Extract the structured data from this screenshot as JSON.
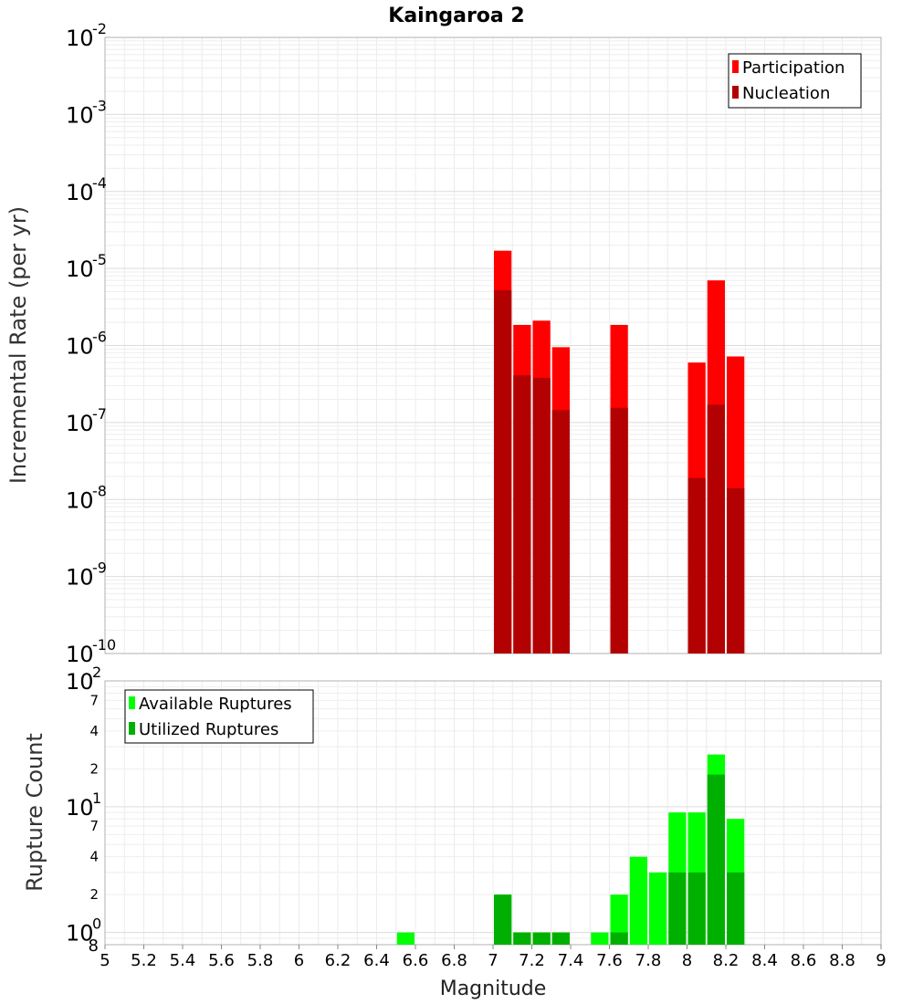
{
  "chart_data": [
    {
      "type": "bar",
      "title": "Kaingaroa 2",
      "ylabel": "Incremental Rate (per yr)",
      "yscale": "log",
      "ylim": [
        1e-10,
        0.01
      ],
      "xlim": [
        5,
        9
      ],
      "bin_width": 0.1,
      "legend": {
        "placement": "top-right",
        "items": [
          "Participation",
          "Nucleation"
        ]
      },
      "series": [
        {
          "name": "Participation",
          "color": "#ff0000",
          "points": [
            {
              "x": 7.05,
              "y": 1.7e-05
            },
            {
              "x": 7.15,
              "y": 1.85e-06
            },
            {
              "x": 7.25,
              "y": 2.1e-06
            },
            {
              "x": 7.35,
              "y": 9.5e-07
            },
            {
              "x": 7.65,
              "y": 1.85e-06
            },
            {
              "x": 8.05,
              "y": 6e-07
            },
            {
              "x": 8.15,
              "y": 7e-06
            },
            {
              "x": 8.25,
              "y": 7.2e-07
            }
          ]
        },
        {
          "name": "Nucleation",
          "color": "#b30000",
          "points": [
            {
              "x": 7.05,
              "y": 5.2e-06
            },
            {
              "x": 7.15,
              "y": 4.1e-07
            },
            {
              "x": 7.25,
              "y": 3.8e-07
            },
            {
              "x": 7.35,
              "y": 1.45e-07
            },
            {
              "x": 7.65,
              "y": 1.55e-07
            },
            {
              "x": 8.05,
              "y": 1.9e-08
            },
            {
              "x": 8.15,
              "y": 1.7e-07
            },
            {
              "x": 8.25,
              "y": 1.4e-08
            }
          ]
        }
      ],
      "grid": true
    },
    {
      "type": "bar",
      "xlabel": "Magnitude",
      "ylabel": "Rupture Count",
      "yscale": "log",
      "ylim": [
        0.8,
        100
      ],
      "xlim": [
        5,
        9
      ],
      "bin_width": 0.1,
      "legend": {
        "placement": "top-left",
        "items": [
          "Available Ruptures",
          "Utilized Ruptures"
        ]
      },
      "series": [
        {
          "name": "Available Ruptures",
          "color": "#00ff00",
          "points": [
            {
              "x": 6.55,
              "y": 1
            },
            {
              "x": 7.05,
              "y": 2
            },
            {
              "x": 7.15,
              "y": 1
            },
            {
              "x": 7.25,
              "y": 1
            },
            {
              "x": 7.35,
              "y": 1
            },
            {
              "x": 7.55,
              "y": 1
            },
            {
              "x": 7.65,
              "y": 2
            },
            {
              "x": 7.75,
              "y": 4
            },
            {
              "x": 7.85,
              "y": 3
            },
            {
              "x": 7.95,
              "y": 9
            },
            {
              "x": 8.05,
              "y": 9
            },
            {
              "x": 8.15,
              "y": 26
            },
            {
              "x": 8.25,
              "y": 8
            }
          ]
        },
        {
          "name": "Utilized Ruptures",
          "color": "#00b000",
          "points": [
            {
              "x": 7.05,
              "y": 2
            },
            {
              "x": 7.15,
              "y": 1
            },
            {
              "x": 7.25,
              "y": 1
            },
            {
              "x": 7.35,
              "y": 1
            },
            {
              "x": 7.65,
              "y": 1
            },
            {
              "x": 7.95,
              "y": 3
            },
            {
              "x": 8.05,
              "y": 3
            },
            {
              "x": 8.15,
              "y": 18
            },
            {
              "x": 8.25,
              "y": 3
            }
          ]
        }
      ],
      "x_ticks": [
        "5",
        "5.2",
        "5.4",
        "5.6",
        "5.8",
        "6",
        "6.2",
        "6.4",
        "6.6",
        "6.8",
        "7",
        "7.2",
        "7.4",
        "7.6",
        "7.8",
        "8",
        "8.2",
        "8.4",
        "8.6",
        "8.8",
        "9"
      ],
      "y_minor_labels": [
        "8",
        "2",
        "4",
        "7",
        "2",
        "4",
        "7"
      ],
      "grid": true
    }
  ],
  "axis_labels": {
    "top_exponents": [
      "-10",
      "-9",
      "-8",
      "-7",
      "-6",
      "-5",
      "-4",
      "-3",
      "-2"
    ],
    "bottom_exponents": [
      "0",
      "1",
      "2"
    ],
    "decade_base": "10"
  }
}
